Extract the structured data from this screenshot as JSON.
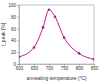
{
  "chart_data": {
    "type": "line",
    "x_label": "annealing temperature [°C]",
    "y_label": "I_peak [%]",
    "x": [
      600,
      650,
      680,
      700,
      720,
      750,
      800,
      850
    ],
    "series": [
      {
        "name": "I_peak",
        "color": "#b0208a",
        "values": [
          12,
          28,
          62,
          92,
          80,
          45,
          18,
          8
        ],
        "marker": "circle",
        "line_style": "solid"
      }
    ],
    "xlim": [
      600,
      850
    ],
    "xticks": [
      600,
      650,
      700,
      750,
      800,
      850
    ],
    "ylim": [
      0,
      100
    ],
    "yticks": [
      0,
      20,
      40,
      60,
      80,
      100
    ],
    "grid": false
  }
}
